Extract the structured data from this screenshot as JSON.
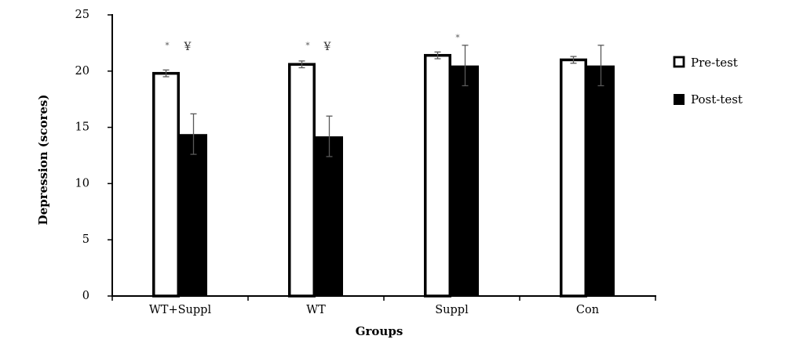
{
  "chart_data": {
    "type": "bar",
    "categories": [
      "WT+Suppl",
      "WT",
      "Suppl",
      "Con"
    ],
    "series": [
      {
        "name": "Pre-test",
        "values": [
          19.8,
          20.6,
          21.4,
          21.0
        ],
        "errors": [
          0.3,
          0.3,
          0.3,
          0.3
        ],
        "fill": "#ffffff",
        "stroke": "#000000"
      },
      {
        "name": "Post-test",
        "values": [
          14.4,
          14.2,
          20.5,
          20.5
        ],
        "errors": [
          1.8,
          1.8,
          1.8,
          1.8
        ],
        "fill": "#000000",
        "stroke": "#000000"
      }
    ],
    "xlabel": "Groups",
    "ylabel": "Depression (scores)",
    "ylim": [
      0,
      25
    ],
    "yticks": [
      0,
      5,
      10,
      15,
      20,
      25
    ],
    "grid": false,
    "legend_position": "right",
    "error_bar_color": "#595959",
    "annotations": [
      "*",
      "¥",
      "*",
      "¥",
      "*"
    ]
  }
}
